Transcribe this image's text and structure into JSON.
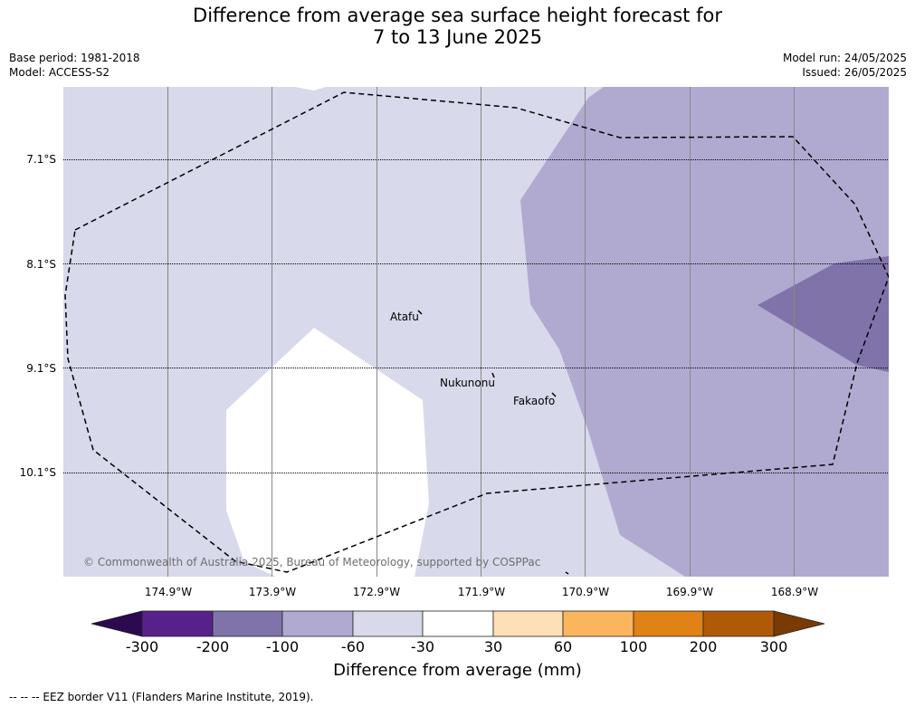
{
  "title": {
    "line1": "Difference from average sea surface height forecast for",
    "line2": "7 to 13 June 2025"
  },
  "info": {
    "base_period": "Base period: 1981-2018",
    "model": "Model: ACCESS-S2",
    "model_run": "Model run: 24/05/2025",
    "issued": "Issued: 26/05/2025"
  },
  "map": {
    "latitude_labels": [
      "7.1°S",
      "8.1°S",
      "9.1°S",
      "10.1°S"
    ],
    "longitude_labels": [
      "174.9°W",
      "173.9°W",
      "172.9°W",
      "171.9°W",
      "170.9°W",
      "169.9°W",
      "168.9°W"
    ],
    "places": [
      "Atafu",
      "Nukunonu",
      "Fakaofo"
    ],
    "copyright": "© Commonwealth of Australia 2025, Bureau of Meteorology, supported by COSPPac",
    "colors": {
      "band_-60_-30": "#d8d9ea",
      "band_-100_-60": "#b0aad0",
      "band_-200_-100": "#8073aa",
      "band_-30_30": "#ffffff"
    }
  },
  "colorbar": {
    "title": "Difference from average (mm)",
    "ticks": [
      "-300",
      "-200",
      "-100",
      "-60",
      "-30",
      "30",
      "60",
      "100",
      "200",
      "300"
    ],
    "colors": [
      "#2d0a4f",
      "#56218a",
      "#8073aa",
      "#b0aad0",
      "#d8d9ea",
      "#ffffff",
      "#fde0b6",
      "#fbb55d",
      "#e08216",
      "#b05a08",
      "#7a3a04"
    ]
  },
  "footer": "--  --  -- EEZ border V11 (Flanders Marine Institute, 2019)."
}
